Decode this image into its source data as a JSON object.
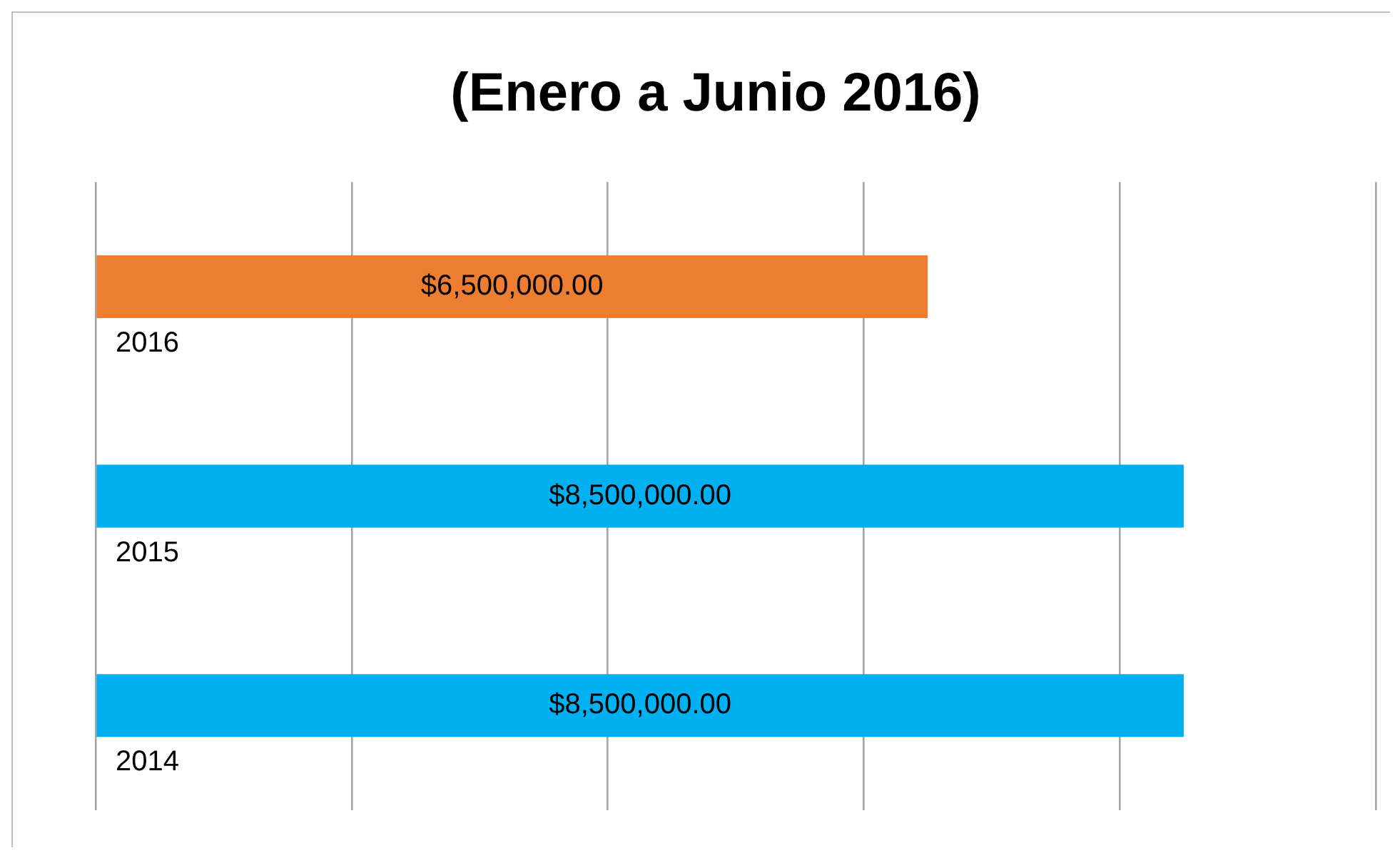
{
  "chart_data": {
    "type": "bar",
    "orientation": "horizontal",
    "title": "(Enero a Junio 2016)",
    "categories": [
      "2016",
      "2015",
      "2014"
    ],
    "values": [
      6500000,
      8500000,
      8500000
    ],
    "colors": [
      "#ed7d31",
      "#00b0f0",
      "#00b0f0"
    ],
    "value_labels": [
      "$6,500,000.00",
      "$8,500,000.00",
      "$8,500,000.00"
    ],
    "xlim": [
      0,
      10000000
    ],
    "xticks": [
      {
        "value": 0,
        "label": null
      },
      {
        "value": 2000000,
        "label": null
      },
      {
        "value": 4000000,
        "label": null
      },
      {
        "value": 6000000,
        "label": null
      },
      {
        "value": 8000000,
        "label": null
      },
      {
        "value": 10000000,
        "label": null
      }
    ],
    "tick_labels": "y",
    "grid": "x",
    "legend": false
  }
}
